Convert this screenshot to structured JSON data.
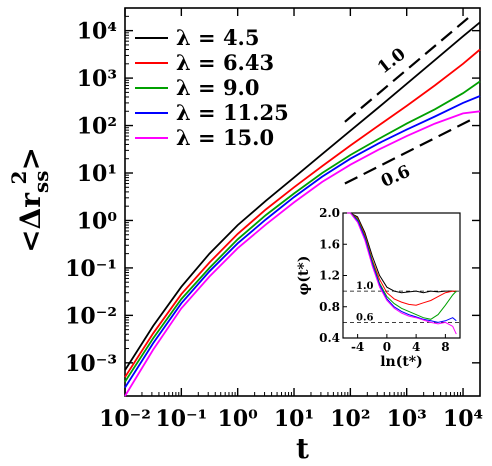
{
  "chart_data": [
    {
      "type": "line",
      "scale": "log-log",
      "xlim": [
        0.01,
        20000
      ],
      "ylim": [
        0.0002,
        30000
      ],
      "x_ticks": [
        0.01,
        0.1,
        1,
        10,
        100,
        1000,
        10000
      ],
      "y_ticks": [
        0.001,
        0.01,
        0.1,
        1,
        10,
        100,
        1000,
        10000
      ],
      "xlabel": "t",
      "ylabel": "<Δr_ss^2>",
      "legend_position": "top-left",
      "series": [
        {
          "name": "λ = 4.5",
          "color": "#000000",
          "x": [
            0.01,
            0.0316,
            0.1,
            0.316,
            1,
            3.16,
            10,
            31.6,
            100,
            316,
            1000,
            3160,
            10000,
            20000
          ],
          "y": [
            0.0007,
            0.006,
            0.04,
            0.2,
            0.8,
            2.6,
            8,
            25,
            78,
            240,
            760,
            2400,
            7600,
            15000
          ]
        },
        {
          "name": "λ = 6.43",
          "color": "#ff0000",
          "x": [
            0.01,
            0.0316,
            0.1,
            0.316,
            1,
            3.16,
            10,
            31.6,
            100,
            316,
            1000,
            3160,
            10000,
            20000
          ],
          "y": [
            0.0005,
            0.0042,
            0.028,
            0.13,
            0.52,
            1.7,
            5,
            14,
            38,
            100,
            260,
            700,
            2000,
            4000
          ]
        },
        {
          "name": "λ = 9.0",
          "color": "#00a000",
          "x": [
            0.01,
            0.0316,
            0.1,
            0.316,
            1,
            3.16,
            10,
            31.6,
            100,
            316,
            1000,
            3160,
            10000,
            20000
          ],
          "y": [
            0.0004,
            0.0033,
            0.022,
            0.1,
            0.4,
            1.3,
            3.7,
            10,
            24,
            52,
            110,
            220,
            480,
            850
          ]
        },
        {
          "name": "λ = 11.25",
          "color": "#0000ff",
          "x": [
            0.01,
            0.0316,
            0.1,
            0.316,
            1,
            3.16,
            10,
            31.6,
            100,
            316,
            1000,
            3160,
            10000,
            20000
          ],
          "y": [
            0.0003,
            0.0026,
            0.018,
            0.085,
            0.33,
            1.05,
            3.1,
            8.4,
            20,
            42,
            82,
            155,
            300,
            420
          ]
        },
        {
          "name": "λ = 15.0",
          "color": "#ff00ff",
          "x": [
            0.01,
            0.0316,
            0.1,
            0.316,
            1,
            3.16,
            10,
            31.6,
            100,
            316,
            1000,
            3160,
            10000,
            20000
          ],
          "y": [
            0.0002,
            0.0019,
            0.014,
            0.066,
            0.26,
            0.82,
            2.4,
            6.5,
            15,
            31,
            60,
            110,
            180,
            200
          ]
        }
      ],
      "annotations": [
        {
          "text": "1.0",
          "slope": 1.0
        },
        {
          "text": "0.6",
          "slope": 0.6
        }
      ]
    },
    {
      "type": "line",
      "role": "inset",
      "xlim": [
        -6,
        10
      ],
      "ylim": [
        0.4,
        2.0
      ],
      "x_ticks": [
        -4,
        0,
        4,
        8
      ],
      "y_ticks": [
        0.4,
        0.8,
        1.2,
        1.6,
        2.0
      ],
      "xlabel": "ln(t*)",
      "ylabel": "φ(t*)",
      "reference_lines": [
        {
          "y": 1.0,
          "label": "1.0"
        },
        {
          "y": 0.6,
          "label": "0.6"
        }
      ],
      "series": [
        {
          "color": "#000000",
          "x": [
            -6,
            -5,
            -4,
            -3,
            -2,
            -1,
            0,
            1,
            2,
            3,
            4,
            5,
            6,
            7,
            8,
            9,
            9.5
          ],
          "y": [
            2.0,
            2.0,
            1.95,
            1.75,
            1.45,
            1.2,
            1.05,
            1.0,
            0.98,
            0.99,
            1.0,
            0.98,
            1.0,
            0.99,
            1.0,
            1.0,
            0.99
          ]
        },
        {
          "color": "#ff0000",
          "x": [
            -6,
            -5,
            -4,
            -3,
            -2,
            -1,
            0,
            1,
            2,
            3,
            4,
            5,
            6,
            7,
            8,
            9,
            9.5
          ],
          "y": [
            2.0,
            2.0,
            1.93,
            1.72,
            1.4,
            1.15,
            0.98,
            0.9,
            0.86,
            0.83,
            0.82,
            0.85,
            0.88,
            0.93,
            0.98,
            1.0,
            1.0
          ]
        },
        {
          "color": "#00a000",
          "x": [
            -6,
            -5,
            -4,
            -3,
            -2,
            -1,
            0,
            1,
            2,
            3,
            4,
            5,
            6,
            7,
            8,
            9,
            9.5
          ],
          "y": [
            2.0,
            2.0,
            1.92,
            1.7,
            1.38,
            1.1,
            0.93,
            0.84,
            0.78,
            0.74,
            0.7,
            0.66,
            0.64,
            0.7,
            0.82,
            0.95,
            1.0
          ]
        },
        {
          "color": "#0000ff",
          "x": [
            -6,
            -5,
            -4,
            -3,
            -2,
            -1,
            0,
            1,
            2,
            3,
            4,
            5,
            6,
            7,
            8,
            9,
            9.5
          ],
          "y": [
            2.0,
            2.0,
            1.9,
            1.68,
            1.35,
            1.08,
            0.9,
            0.8,
            0.74,
            0.7,
            0.67,
            0.64,
            0.62,
            0.6,
            0.62,
            0.66,
            0.62
          ]
        },
        {
          "color": "#ff00ff",
          "x": [
            -6,
            -5,
            -4,
            -3,
            -2,
            -1,
            0,
            1,
            2,
            3,
            4,
            5,
            6,
            7,
            8,
            9,
            9.5
          ],
          "y": [
            2.0,
            2.0,
            1.88,
            1.65,
            1.32,
            1.05,
            0.88,
            0.78,
            0.72,
            0.68,
            0.66,
            0.63,
            0.6,
            0.58,
            0.6,
            0.55,
            0.45
          ]
        }
      ]
    }
  ]
}
